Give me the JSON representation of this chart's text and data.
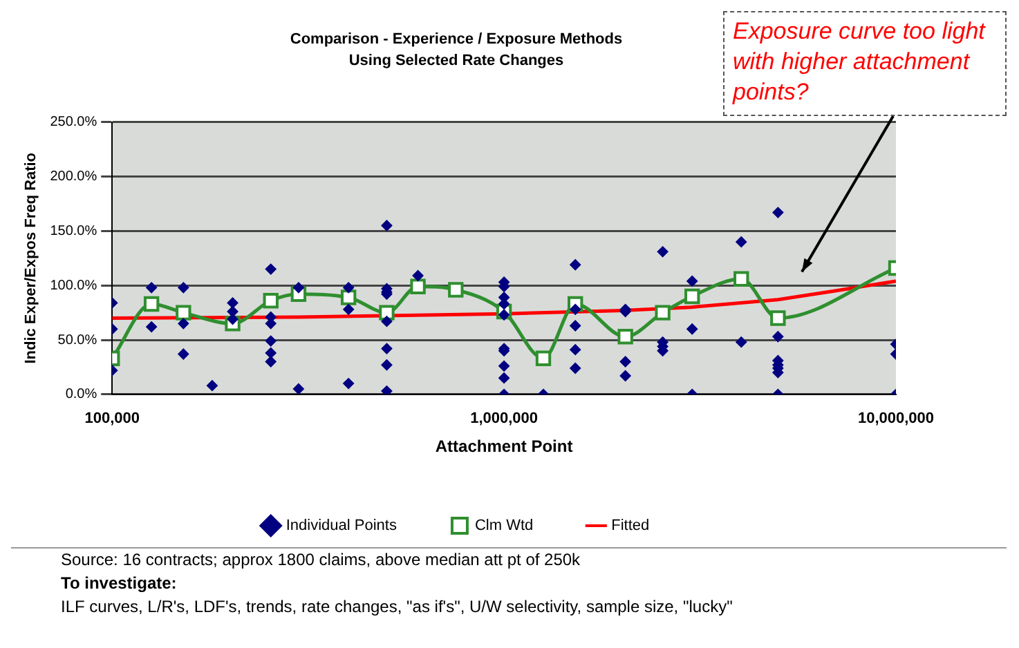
{
  "chart_data": {
    "type": "scatter",
    "title": "Comparison - Experience / Exposure Methods",
    "subtitle": "Using Selected Rate Changes",
    "xlabel": "Attachment Point",
    "ylabel": "Indic Exper/Expos Freq Ratio",
    "log": "x",
    "xlim": [
      100000,
      10000000
    ],
    "xticks": [
      {
        "value": 100000,
        "label": "100,000"
      },
      {
        "value": 1000000,
        "label": "1,000,000"
      },
      {
        "value": 10000000,
        "label": "10,000,000"
      }
    ],
    "ylim": [
      0,
      250
    ],
    "yticks": [
      {
        "value": 0,
        "label": "0.0%"
      },
      {
        "value": 50,
        "label": "50.0%"
      },
      {
        "value": 100,
        "label": "100.0%"
      },
      {
        "value": 150,
        "label": "150.0%"
      },
      {
        "value": 200,
        "label": "200.0%"
      },
      {
        "value": 250,
        "label": "250.0%"
      }
    ],
    "grid": "y",
    "legend": "bottom",
    "series": [
      {
        "name": "Individual Points",
        "marker": "diamond",
        "color": "#000080",
        "x": [
          100000,
          100000,
          100000,
          126000,
          126000,
          152000,
          152000,
          152000,
          180000,
          203000,
          203000,
          203000,
          254000,
          254000,
          254000,
          254000,
          254000,
          254000,
          299000,
          299000,
          401000,
          401000,
          401000,
          502000,
          502000,
          502000,
          502000,
          502000,
          502000,
          502000,
          502000,
          603000,
          1000000,
          1000000,
          1000000,
          1000000,
          1000000,
          1000000,
          1000000,
          1000000,
          1000000,
          1000000,
          1260000,
          1520000,
          1520000,
          1520000,
          1520000,
          1520000,
          2040000,
          2040000,
          2040000,
          2040000,
          2540000,
          2540000,
          2540000,
          2540000,
          3020000,
          3020000,
          3020000,
          4030000,
          4030000,
          5000000,
          5000000,
          5000000,
          5000000,
          5000000,
          5000000,
          5000000,
          10000000,
          10000000,
          10000000
        ],
        "values": [
          84,
          60,
          22,
          98,
          62,
          98,
          65,
          37,
          8,
          84,
          76,
          69,
          115,
          71,
          65,
          49,
          38,
          30,
          98,
          5,
          98,
          78,
          10,
          155,
          97,
          94,
          92,
          67,
          42,
          27,
          3,
          109,
          103,
          99,
          89,
          83,
          73,
          42,
          40,
          26,
          15,
          0,
          0,
          119,
          78,
          63,
          41,
          24,
          78,
          76,
          30,
          17,
          131,
          48,
          44,
          40,
          104,
          60,
          0,
          140,
          48,
          167,
          53,
          31,
          27,
          24,
          20,
          0,
          46,
          37,
          0
        ]
      },
      {
        "name": "Clm Wtd",
        "type": "line",
        "marker": "square",
        "line_style": "solid",
        "color": "#2f8f2f",
        "x": [
          100000,
          126000,
          152000,
          203000,
          254000,
          299000,
          401000,
          502000,
          603000,
          753000,
          1000000,
          1260000,
          1520000,
          2040000,
          2540000,
          3020000,
          4030000,
          5000000,
          10000000
        ],
        "values": [
          33,
          83,
          75,
          65,
          86,
          92,
          89,
          75,
          99,
          96,
          76,
          33,
          83,
          53,
          75,
          90,
          106,
          70,
          116
        ]
      },
      {
        "name": "Fitted",
        "type": "line",
        "marker": "none",
        "line_style": "solid",
        "color": "#ff0000",
        "x": [
          100000,
          300000,
          1000000,
          2000000,
          3000000,
          5000000,
          7000000,
          10000000
        ],
        "values": [
          70,
          71,
          74,
          77,
          80,
          87,
          95,
          104
        ]
      }
    ],
    "annotations": [
      "Exposure curve too light with higher attachment points?",
      "Source: 16 contracts; approx 1800 claims, above median att pt of 250k",
      "To investigate:",
      "ILF curves, L/R's, LDF's, trends, rate changes, \"as if's\", U/W selectivity, sample size, \"lucky\""
    ]
  }
}
